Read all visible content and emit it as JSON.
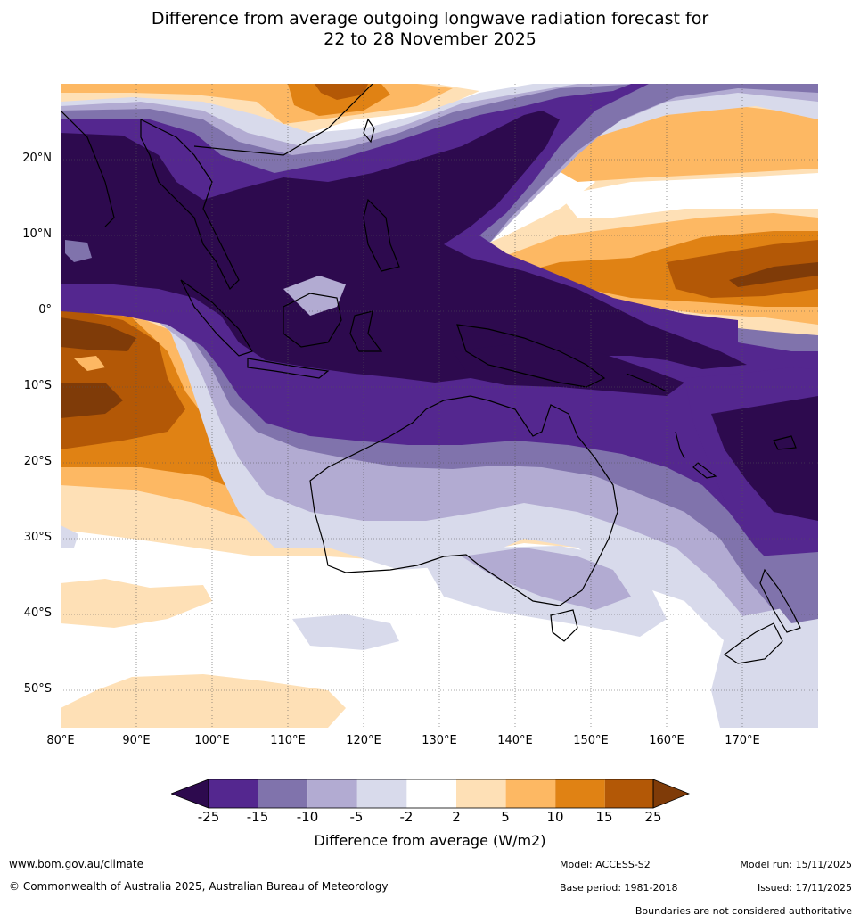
{
  "title": {
    "line1": "Difference from average outgoing longwave radiation forecast for",
    "line2": "22 to 28 November 2025"
  },
  "map": {
    "lat_labels": [
      "20°N",
      "10°N",
      "0°",
      "10°S",
      "20°S",
      "30°S",
      "40°S",
      "50°S"
    ],
    "lon_labels": [
      "80°E",
      "90°E",
      "100°E",
      "110°E",
      "120°E",
      "130°E",
      "140°E",
      "150°E",
      "160°E",
      "170°E"
    ],
    "extent": {
      "lon": [
        80,
        180
      ],
      "lat": [
        -55,
        30
      ]
    }
  },
  "colorbar": {
    "labels": [
      "-25",
      "-15",
      "-10",
      "-5",
      "-2",
      "2",
      "5",
      "10",
      "15",
      "25"
    ],
    "title": "Difference from average (W/m2)",
    "colors": {
      "lt-25": "#2d0a4e",
      "m25_m15": "#54278f",
      "m15_m10": "#8073ac",
      "m10_m5": "#b2abd2",
      "m5_m2": "#d8daeb",
      "m2_2": "#ffffff",
      "p2_5": "#fee0b6",
      "p5_10": "#fdb863",
      "p10_15": "#e08214",
      "p15_25": "#b35806",
      "gt25": "#7f3b08"
    }
  },
  "footer": {
    "website": "www.bom.gov.au/climate",
    "copyright": "© Commonwealth of Australia 2025, Australian Bureau of Meteorology",
    "model": "Model: ACCESS-S2",
    "base_period": "Base period: 1981-2018",
    "model_run": "Model run: 15/11/2025",
    "issued": "Issued: 17/11/2025",
    "disclaimer": "Boundaries are not considered authoritative"
  }
}
